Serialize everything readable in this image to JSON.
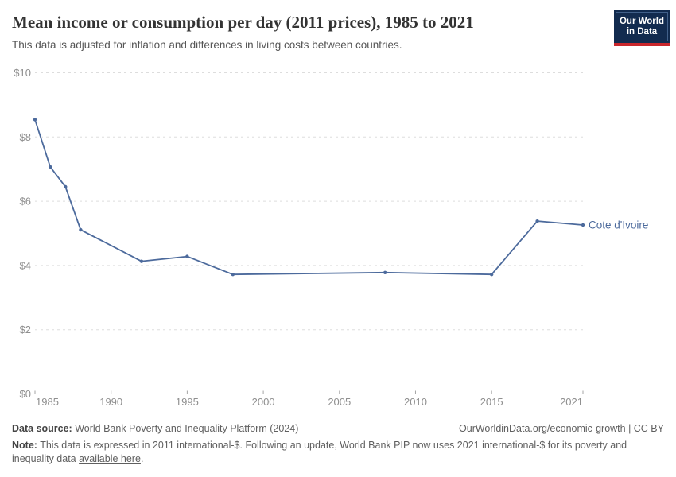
{
  "header": {
    "title": "Mean income or consumption per day (2011 prices), 1985 to 2021",
    "subtitle": "This data is adjusted for inflation and differences in living costs between countries.",
    "logo": {
      "line1": "Our World",
      "line2": "in Data"
    }
  },
  "chart_data": {
    "type": "line",
    "title": "Mean income or consumption per day (2011 prices), 1985 to 2021",
    "x": [
      1985,
      1986,
      1987,
      1988,
      1992,
      1995,
      1998,
      2008,
      2015,
      2018,
      2021
    ],
    "series": [
      {
        "name": "Cote d'Ivoire",
        "color": "#4C6A9C",
        "values": [
          8.54,
          7.07,
          6.45,
          5.11,
          4.13,
          4.28,
          3.72,
          3.78,
          3.72,
          5.38,
          5.26
        ]
      }
    ],
    "xlabel": "",
    "ylabel": "",
    "xlim": [
      1985,
      2021
    ],
    "ylim": [
      0,
      10
    ],
    "x_ticks": [
      1985,
      1990,
      1995,
      2000,
      2005,
      2010,
      2015,
      2021
    ],
    "y_ticks": [
      0,
      2,
      4,
      6,
      8,
      10
    ],
    "y_tick_prefix": "$",
    "grid": "horizontal-dashed",
    "legend_position": "line-end-label",
    "end_label": "Cote d'Ivoire"
  },
  "footer": {
    "source_label": "Data source:",
    "source_text": " World Bank Poverty and Inequality Platform (2024)",
    "attribution": "OurWorldinData.org/economic-growth | CC BY",
    "note_label": "Note:",
    "note_before_link": " This data is expressed in 2011 international-$. Following an update, World Bank PIP now uses 2021 international-$ for its poverty and inequality data ",
    "note_link": "available here",
    "note_after_link": "."
  },
  "colors": {
    "line": "#4C6A9C",
    "grid": "#dddddd",
    "axis": "#a5a5a5",
    "tick_text": "#8f8f8f",
    "title_text": "#333333",
    "subtitle_text": "#555555",
    "footer_text": "#5f5f5f",
    "logo_bg": "#122B4F",
    "logo_stripe": "#C9262C"
  }
}
